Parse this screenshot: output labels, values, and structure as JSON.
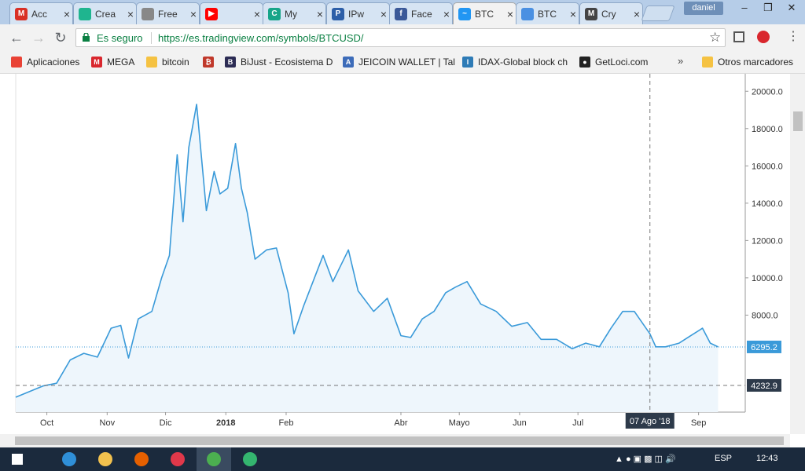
{
  "browser": {
    "tabs": [
      {
        "title": "Acc",
        "icon": "gmail-icon",
        "color": "#d93025",
        "glyph": "M"
      },
      {
        "title": "Crea",
        "icon": "green-circle-icon",
        "color": "#1fb58f",
        "glyph": ""
      },
      {
        "title": "Free",
        "icon": "bitcoin-coin-icon",
        "color": "#888888",
        "glyph": ""
      },
      {
        "title": "",
        "icon": "youtube-icon",
        "color": "#ff0000",
        "glyph": "▶"
      },
      {
        "title": "My",
        "icon": "cmc-icon",
        "color": "#17a589",
        "glyph": "C"
      },
      {
        "title": "IPw",
        "icon": "ipw-icon",
        "color": "#2d5fa8",
        "glyph": "P"
      },
      {
        "title": "Face",
        "icon": "facebook-icon",
        "color": "#3b5998",
        "glyph": "f"
      },
      {
        "title": "BTC",
        "icon": "tradingview-icon",
        "color": "#2196f3",
        "glyph": "~"
      },
      {
        "title": "BTC",
        "icon": "loading-icon",
        "color": "#4a90e2",
        "glyph": ""
      },
      {
        "title": "Cry",
        "icon": "crypto-icon",
        "color": "#444444",
        "glyph": "M"
      }
    ],
    "user": "daniel",
    "security_label": "Es seguro",
    "url": "https://es.tradingview.com/symbols/BTCUSD/"
  },
  "bookmarks": {
    "items": [
      {
        "label": "Aplicaciones",
        "icon": "apps-grid-icon",
        "color": "#e94235",
        "glyph": ""
      },
      {
        "label": "MEGA",
        "icon": "mega-icon",
        "color": "#d9272e",
        "glyph": "M"
      },
      {
        "label": "bitcoin",
        "icon": "folder-icon",
        "color": "#f5c242",
        "glyph": ""
      },
      {
        "label": "",
        "icon": "bitcoin-icon",
        "color": "#c0392b",
        "glyph": "₿"
      },
      {
        "label": "BiJust - Ecosistema D",
        "icon": "bijust-icon",
        "color": "#2c2c54",
        "glyph": "B"
      },
      {
        "label": "JEICOIN WALLET | Tal",
        "icon": "jeicoin-icon",
        "color": "#3d6cb9",
        "glyph": "A"
      },
      {
        "label": "IDAX-Global block ch",
        "icon": "idax-icon",
        "color": "#2e7bb6",
        "glyph": "I"
      },
      {
        "label": "GetLoci.com",
        "icon": "getloci-icon",
        "color": "#222222",
        "glyph": "●"
      }
    ],
    "more": "»",
    "other_label": "Otros marcadores"
  },
  "chart_data": {
    "type": "area",
    "series": [
      {
        "values": [
          [
            "2017-09-15",
            3600
          ],
          [
            "2017-09-22",
            3900
          ],
          [
            "2017-09-29",
            4200
          ],
          [
            "2017-10-06",
            4350
          ],
          [
            "2017-10-13",
            5600
          ],
          [
            "2017-10-20",
            5950
          ],
          [
            "2017-10-27",
            5750
          ],
          [
            "2017-11-03",
            7300
          ],
          [
            "2017-11-08",
            7450
          ],
          [
            "2017-11-12",
            5700
          ],
          [
            "2017-11-17",
            7800
          ],
          [
            "2017-11-24",
            8200
          ],
          [
            "2017-11-29",
            10000
          ],
          [
            "2017-12-03",
            11200
          ],
          [
            "2017-12-07",
            16600
          ],
          [
            "2017-12-10",
            13000
          ],
          [
            "2017-12-13",
            17000
          ],
          [
            "2017-12-17",
            19300
          ],
          [
            "2017-12-22",
            13600
          ],
          [
            "2017-12-26",
            15700
          ],
          [
            "2017-12-29",
            14500
          ],
          [
            "2018-01-02",
            14800
          ],
          [
            "2018-01-06",
            17200
          ],
          [
            "2018-01-09",
            14800
          ],
          [
            "2018-01-12",
            13500
          ],
          [
            "2018-01-16",
            11000
          ],
          [
            "2018-01-22",
            11500
          ],
          [
            "2018-01-27",
            11600
          ],
          [
            "2018-02-02",
            9200
          ],
          [
            "2018-02-05",
            7000
          ],
          [
            "2018-02-10",
            8500
          ],
          [
            "2018-02-20",
            11200
          ],
          [
            "2018-02-25",
            9800
          ],
          [
            "2018-03-05",
            11500
          ],
          [
            "2018-03-10",
            9300
          ],
          [
            "2018-03-18",
            8200
          ],
          [
            "2018-03-25",
            8900
          ],
          [
            "2018-04-01",
            6900
          ],
          [
            "2018-04-06",
            6800
          ],
          [
            "2018-04-12",
            7800
          ],
          [
            "2018-04-18",
            8200
          ],
          [
            "2018-04-24",
            9200
          ],
          [
            "2018-04-29",
            9500
          ],
          [
            "2018-05-05",
            9800
          ],
          [
            "2018-05-12",
            8600
          ],
          [
            "2018-05-20",
            8200
          ],
          [
            "2018-05-28",
            7400
          ],
          [
            "2018-06-05",
            7600
          ],
          [
            "2018-06-12",
            6700
          ],
          [
            "2018-06-20",
            6700
          ],
          [
            "2018-06-28",
            6200
          ],
          [
            "2018-07-05",
            6500
          ],
          [
            "2018-07-12",
            6300
          ],
          [
            "2018-07-18",
            7300
          ],
          [
            "2018-07-24",
            8200
          ],
          [
            "2018-07-30",
            8200
          ],
          [
            "2018-08-07",
            7000
          ],
          [
            "2018-08-10",
            6300
          ],
          [
            "2018-08-15",
            6300
          ],
          [
            "2018-08-22",
            6500
          ],
          [
            "2018-08-28",
            6900
          ],
          [
            "2018-09-03",
            7300
          ],
          [
            "2018-09-07",
            6500
          ],
          [
            "2018-09-11",
            6295
          ]
        ]
      }
    ],
    "x_labels": [
      "Oct",
      "Nov",
      "Dic",
      "2018",
      "Feb",
      "Abr",
      "Mayo",
      "Jun",
      "Jul",
      "Sep"
    ],
    "x_label_dates": [
      "2017-10-01",
      "2017-11-01",
      "2017-12-01",
      "2018-01-01",
      "2018-02-01",
      "2018-04-01",
      "2018-05-01",
      "2018-06-01",
      "2018-07-01",
      "2018-09-01"
    ],
    "x_range": [
      "2017-09-15",
      "2018-09-25"
    ],
    "y_ticks": [
      "20000.0",
      "18000.0",
      "16000.0",
      "14000.0",
      "12000.0",
      "10000.0",
      "8000.0"
    ],
    "y_tick_values": [
      20000,
      18000,
      16000,
      14000,
      12000,
      10000,
      8000
    ],
    "ylim": [
      2800,
      20600
    ],
    "last_price_label": "6295.2",
    "last_price": 6295.2,
    "crosshair_price_label": "4232.9",
    "crosshair_price": 4232.9,
    "crosshair_date": "2018-08-07",
    "crosshair_date_label": "07 Ago '18",
    "line_color": "#3a9ad9",
    "fill_color": "#eef6fc",
    "grid": false
  },
  "taskbar": {
    "apps": [
      {
        "icon": "windows-start-icon",
        "color": "#ffffff"
      },
      {
        "icon": "internet-explorer-icon",
        "color": "#2f8fd8"
      },
      {
        "icon": "file-explorer-icon",
        "color": "#f2c14e"
      },
      {
        "icon": "firefox-icon",
        "color": "#e66000"
      },
      {
        "icon": "app-red-icon",
        "color": "#e0384a"
      },
      {
        "icon": "chrome-icon",
        "color": "#4caf50"
      },
      {
        "icon": "app-green-icon",
        "color": "#34b56f"
      }
    ],
    "language": "ESP",
    "time": "12:43"
  }
}
